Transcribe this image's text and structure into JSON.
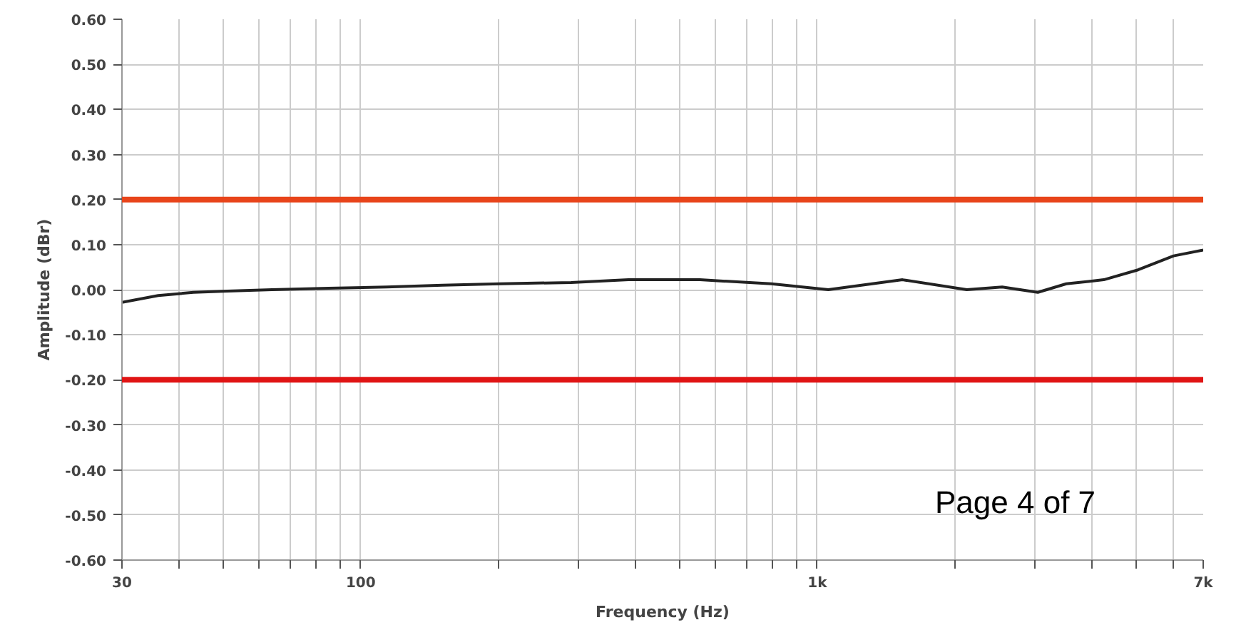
{
  "chart_data": {
    "type": "line",
    "xlabel": "Frequency (Hz)",
    "ylabel": "Amplitude (dBr)",
    "log": "x",
    "grid": true,
    "x": [
      30,
      36,
      43,
      51,
      64,
      85,
      114,
      151,
      202,
      289,
      386,
      553,
      793,
      1057,
      1537,
      2125,
      2540,
      3040,
      3510,
      4240,
      5040,
      6030,
      7000
    ],
    "series": [
      {
        "color": "#222222",
        "values": [
          -0.028,
          -0.013,
          -0.006,
          -0.003,
          0.0,
          0.003,
          0.006,
          0.01,
          0.013,
          0.016,
          0.022,
          0.022,
          0.013,
          0.0,
          0.022,
          0.0,
          0.006,
          -0.006,
          0.013,
          0.022,
          0.044,
          0.075,
          0.088
        ]
      }
    ],
    "xlim": [
      30,
      7000
    ],
    "ylim": [
      -0.6,
      0.6
    ],
    "xticks": [
      30,
      {
        "value": 40,
        "label": null
      },
      {
        "value": 50,
        "label": null
      },
      {
        "value": 60,
        "label": null
      },
      {
        "value": 70,
        "label": null
      },
      {
        "value": 80,
        "label": null
      },
      {
        "value": 90,
        "label": null
      },
      100,
      {
        "value": 200,
        "label": null
      },
      {
        "value": 300,
        "label": null
      },
      {
        "value": 400,
        "label": null
      },
      {
        "value": 500,
        "label": null
      },
      {
        "value": 600,
        "label": null
      },
      {
        "value": 700,
        "label": null
      },
      {
        "value": 800,
        "label": null
      },
      {
        "value": 900,
        "label": null
      },
      {
        "value": 1000,
        "label": "1k"
      },
      {
        "value": 2000,
        "label": null
      },
      {
        "value": 3000,
        "label": null
      },
      {
        "value": 4000,
        "label": null
      },
      {
        "value": 5000,
        "label": null
      },
      {
        "value": 6000,
        "label": null
      },
      {
        "value": 7000,
        "label": "7k"
      }
    ],
    "yticks": [
      {
        "value": -0.6,
        "label": "-0.60"
      },
      {
        "value": -0.5,
        "label": "-0.50"
      },
      {
        "value": -0.4,
        "label": "-0.40"
      },
      {
        "value": -0.3,
        "label": "-0.30"
      },
      {
        "value": -0.2,
        "label": "-0.20"
      },
      {
        "value": -0.1,
        "label": "-0.10"
      },
      {
        "value": 0.0,
        "label": "0.00"
      },
      {
        "value": 0.1,
        "label": "0.10"
      },
      {
        "value": 0.2,
        "label": "0.20"
      },
      {
        "value": 0.3,
        "label": "0.30"
      },
      {
        "value": 0.4,
        "label": "0.40"
      },
      {
        "value": 0.5,
        "label": "0.50"
      },
      {
        "value": 0.6,
        "label": "0.60"
      }
    ],
    "ref_lines": [
      {
        "axis": "y",
        "value": 0.2,
        "color": "#e8441a"
      },
      {
        "axis": "y",
        "value": -0.2,
        "color": "#e01414"
      }
    ],
    "annotations": [
      "Page 4 of 7"
    ]
  }
}
